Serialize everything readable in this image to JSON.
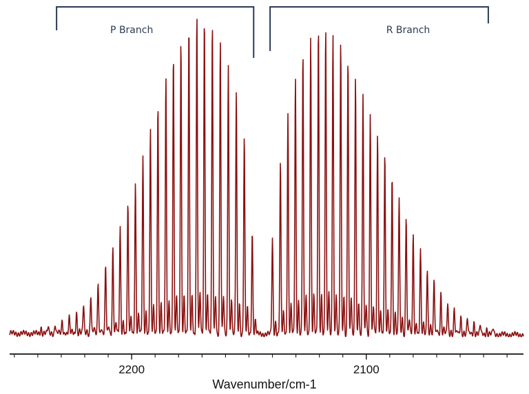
{
  "chart_data": {
    "type": "line",
    "title": "",
    "xlabel": "Wavenumber/cm-1",
    "ylabel": "",
    "x_reversed": true,
    "xlim": [
      2252,
      2033
    ],
    "x_ticks": [
      2200,
      2100
    ],
    "grid": false,
    "line_color": "#8b1010",
    "bracket_color": "#2a3a55",
    "annotations": [
      {
        "label": "P Branch",
        "x_range": [
          2232,
          2148
        ]
      },
      {
        "label": "R Branch",
        "x_range": [
          2141,
          2048
        ]
      }
    ],
    "series": [
      {
        "lines": [
          {
            "x": 2238.6,
            "y": 0.02
          },
          {
            "x": 2235.6,
            "y": 0.02
          },
          {
            "x": 2232.6,
            "y": 0.03
          },
          {
            "x": 2229.6,
            "y": 0.04
          },
          {
            "x": 2226.6,
            "y": 0.05
          },
          {
            "x": 2223.5,
            "y": 0.07
          },
          {
            "x": 2220.5,
            "y": 0.09
          },
          {
            "x": 2217.4,
            "y": 0.12
          },
          {
            "x": 2214.3,
            "y": 0.16
          },
          {
            "x": 2211.1,
            "y": 0.21
          },
          {
            "x": 2208.0,
            "y": 0.27
          },
          {
            "x": 2204.9,
            "y": 0.33
          },
          {
            "x": 2201.6,
            "y": 0.4
          },
          {
            "x": 2198.4,
            "y": 0.47
          },
          {
            "x": 2195.2,
            "y": 0.55
          },
          {
            "x": 2192.0,
            "y": 0.64
          },
          {
            "x": 2188.8,
            "y": 0.72
          },
          {
            "x": 2185.4,
            "y": 0.8
          },
          {
            "x": 2182.2,
            "y": 0.87
          },
          {
            "x": 2179.0,
            "y": 0.92
          },
          {
            "x": 2175.6,
            "y": 0.96
          },
          {
            "x": 2172.2,
            "y": 1.0
          },
          {
            "x": 2169.0,
            "y": 0.99
          },
          {
            "x": 2165.6,
            "y": 0.97
          },
          {
            "x": 2162.2,
            "y": 0.92
          },
          {
            "x": 2158.8,
            "y": 0.85
          },
          {
            "x": 2155.4,
            "y": 0.76
          },
          {
            "x": 2152.0,
            "y": 0.62
          },
          {
            "x": 2148.6,
            "y": 0.32
          },
          {
            "x": 2140.0,
            "y": 0.3
          },
          {
            "x": 2136.6,
            "y": 0.53
          },
          {
            "x": 2133.4,
            "y": 0.69
          },
          {
            "x": 2130.2,
            "y": 0.8
          },
          {
            "x": 2127.0,
            "y": 0.88
          },
          {
            "x": 2123.7,
            "y": 0.93
          },
          {
            "x": 2120.4,
            "y": 0.96
          },
          {
            "x": 2117.3,
            "y": 0.96
          },
          {
            "x": 2114.2,
            "y": 0.95
          },
          {
            "x": 2110.9,
            "y": 0.92
          },
          {
            "x": 2107.8,
            "y": 0.87
          },
          {
            "x": 2104.6,
            "y": 0.81
          },
          {
            "x": 2101.4,
            "y": 0.75
          },
          {
            "x": 2098.3,
            "y": 0.69
          },
          {
            "x": 2095.2,
            "y": 0.62
          },
          {
            "x": 2092.1,
            "y": 0.56
          },
          {
            "x": 2089.0,
            "y": 0.5
          },
          {
            "x": 2086.0,
            "y": 0.43
          },
          {
            "x": 2083.0,
            "y": 0.37
          },
          {
            "x": 2080.0,
            "y": 0.31
          },
          {
            "x": 2076.9,
            "y": 0.26
          },
          {
            "x": 2074.0,
            "y": 0.21
          },
          {
            "x": 2071.1,
            "y": 0.17
          },
          {
            "x": 2068.2,
            "y": 0.13
          },
          {
            "x": 2065.3,
            "y": 0.1
          },
          {
            "x": 2062.5,
            "y": 0.08
          },
          {
            "x": 2059.7,
            "y": 0.06
          },
          {
            "x": 2056.9,
            "y": 0.05
          },
          {
            "x": 2054.1,
            "y": 0.04
          },
          {
            "x": 2051.4,
            "y": 0.03
          },
          {
            "x": 2048.7,
            "y": 0.02
          },
          {
            "x": 2045.9,
            "y": 0.02
          }
        ]
      }
    ]
  }
}
